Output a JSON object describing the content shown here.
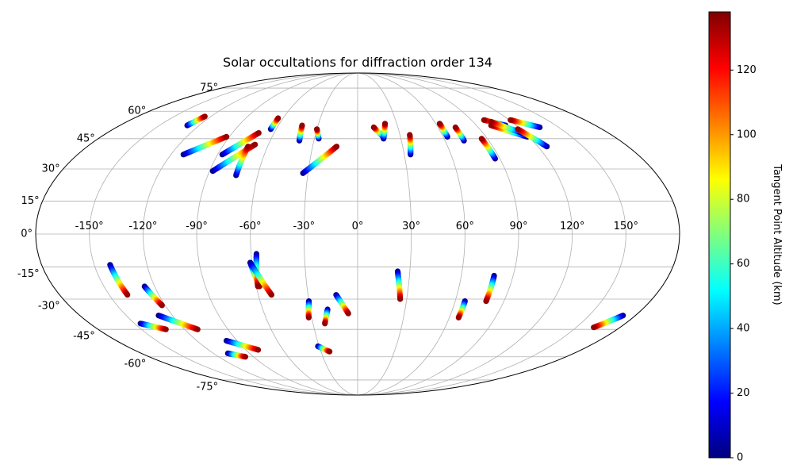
{
  "chart_data": {
    "type": "scatter",
    "projection": "mollweide",
    "title": "Solar occultations for diffraction order 134",
    "grid": true,
    "longitude_ticks": [
      "-150°",
      "-120°",
      "-90°",
      "-60°",
      "-30°",
      "0°",
      "30°",
      "60°",
      "90°",
      "120°",
      "150°"
    ],
    "latitude_ticks": [
      "75°",
      "60°",
      "45°",
      "30°",
      "15°",
      "0°",
      "-15°",
      "-30°",
      "-45°",
      "-60°",
      "-75°"
    ],
    "colorbar": {
      "label": "Tangent Point Altitude (km)",
      "colormap": "jet",
      "range": [
        0,
        138
      ],
      "ticks": [
        "0",
        "20",
        "40",
        "60",
        "80",
        "100",
        "120"
      ]
    },
    "color_stops": [
      "#00007f",
      "#0000ff",
      "#007fff",
      "#00ffff",
      "#7fff7f",
      "#ffff00",
      "#ff7f00",
      "#ff0000",
      "#7f0000"
    ],
    "occultations": [
      {
        "lon": [
          -129,
          -125
        ],
        "lat": [
          52,
          57
        ],
        "alt": [
          0,
          135
        ]
      },
      {
        "lon": [
          -112,
          -92
        ],
        "lat": [
          37,
          46
        ],
        "alt": [
          0,
          135
        ]
      },
      {
        "lon": [
          -87,
          -71
        ],
        "lat": [
          37,
          48
        ],
        "alt": [
          0,
          135
        ]
      },
      {
        "lon": [
          -88,
          -69
        ],
        "lat": [
          29,
          42
        ],
        "alt": [
          0,
          135
        ]
      },
      {
        "lon": [
          -73,
          -73
        ],
        "lat": [
          27,
          41
        ],
        "alt": [
          0,
          135
        ]
      },
      {
        "lon": [
          -64,
          -64
        ],
        "lat": [
          50,
          56
        ],
        "alt": [
          0,
          135
        ]
      },
      {
        "lon": [
          -40,
          -42
        ],
        "lat": [
          44,
          52
        ],
        "alt": [
          0,
          135
        ]
      },
      {
        "lon": [
          -33,
          -14
        ],
        "lat": [
          28,
          41
        ],
        "alt": [
          0,
          135
        ]
      },
      {
        "lon": [
          -27,
          -30
        ],
        "lat": [
          45,
          50
        ],
        "alt": [
          0,
          135
        ]
      },
      {
        "lon": [
          18,
          12
        ],
        "lat": [
          46,
          51
        ],
        "alt": [
          0,
          135
        ]
      },
      {
        "lon": [
          18,
          21
        ],
        "lat": [
          45,
          53
        ],
        "alt": [
          0,
          135
        ]
      },
      {
        "lon": [
          34,
          37
        ],
        "lat": [
          37,
          47
        ],
        "alt": [
          0,
          135
        ]
      },
      {
        "lon": [
          63,
          63
        ],
        "lat": [
          46,
          53
        ],
        "alt": [
          0,
          135
        ]
      },
      {
        "lon": [
          73,
          73
        ],
        "lat": [
          44,
          51
        ],
        "alt": [
          0,
          135
        ]
      },
      {
        "lon": [
          87,
          86
        ],
        "lat": [
          35,
          45
        ],
        "alt": [
          0,
          135
        ]
      },
      {
        "lon": [
          112,
          100
        ],
        "lat": [
          52,
          55
        ],
        "alt": [
          0,
          135
        ]
      },
      {
        "lon": [
          119,
          101
        ],
        "lat": [
          46,
          52
        ],
        "alt": [
          0,
          135
        ]
      },
      {
        "lon": [
          118,
          104
        ],
        "lat": [
          48,
          54
        ],
        "alt": [
          0,
          135
        ]
      },
      {
        "lon": [
          136,
          121
        ],
        "lat": [
          51,
          55
        ],
        "alt": [
          0,
          135
        ]
      },
      {
        "lon": [
          126,
          118
        ],
        "lat": [
          41,
          50
        ],
        "alt": [
          0,
          135
        ]
      },
      {
        "lon": [
          -141,
          -139
        ],
        "lat": [
          -14,
          -28
        ],
        "alt": [
          0,
          135
        ]
      },
      {
        "lon": [
          -126,
          -122
        ],
        "lat": [
          -24,
          -33
        ],
        "alt": [
          0,
          135
        ]
      },
      {
        "lon": [
          -129,
          -111
        ],
        "lat": [
          -38,
          -45
        ],
        "alt": [
          0,
          135
        ]
      },
      {
        "lon": [
          -146,
          -133
        ],
        "lat": [
          -42,
          -45
        ],
        "alt": [
          0,
          135
        ]
      },
      {
        "lon": [
          -61,
          -58
        ],
        "lat": [
          -13,
          -24
        ],
        "alt": [
          0,
          135
        ]
      },
      {
        "lon": [
          -57,
          -59
        ],
        "lat": [
          -9,
          -24
        ],
        "alt": [
          0,
          135
        ]
      },
      {
        "lon": [
          -61,
          -52
        ],
        "lat": [
          -13,
          -28
        ],
        "alt": [
          0,
          135
        ]
      },
      {
        "lon": [
          -30,
          -32
        ],
        "lat": [
          -31,
          -39
        ],
        "alt": [
          0,
          135
        ]
      },
      {
        "lon": [
          -19,
          -22
        ],
        "lat": [
          -35,
          -42
        ],
        "alt": [
          0,
          135
        ]
      },
      {
        "lon": [
          -13,
          -6
        ],
        "lat": [
          -28,
          -37
        ],
        "alt": [
          0,
          135
        ]
      },
      {
        "lon": [
          -31,
          -23
        ],
        "lat": [
          -54,
          -57
        ],
        "alt": [
          0,
          135
        ]
      },
      {
        "lon": [
          -98,
          -80
        ],
        "lat": [
          -51,
          -56
        ],
        "alt": [
          0,
          135
        ]
      },
      {
        "lon": [
          -108,
          -97
        ],
        "lat": [
          -58,
          -60
        ],
        "alt": [
          0,
          135
        ]
      },
      {
        "lon": [
          23,
          26
        ],
        "lat": [
          -17,
          -30
        ],
        "alt": [
          0,
          135
        ]
      },
      {
        "lon": [
          66,
          66
        ],
        "lat": [
          -31,
          -39
        ],
        "alt": [
          0,
          135
        ]
      },
      {
        "lon": [
          79,
          79
        ],
        "lat": [
          -19,
          -31
        ],
        "alt": [
          0,
          135
        ]
      },
      {
        "lon": [
          172,
          162
        ],
        "lat": [
          -38,
          -44
        ],
        "alt": [
          0,
          135
        ]
      }
    ]
  }
}
